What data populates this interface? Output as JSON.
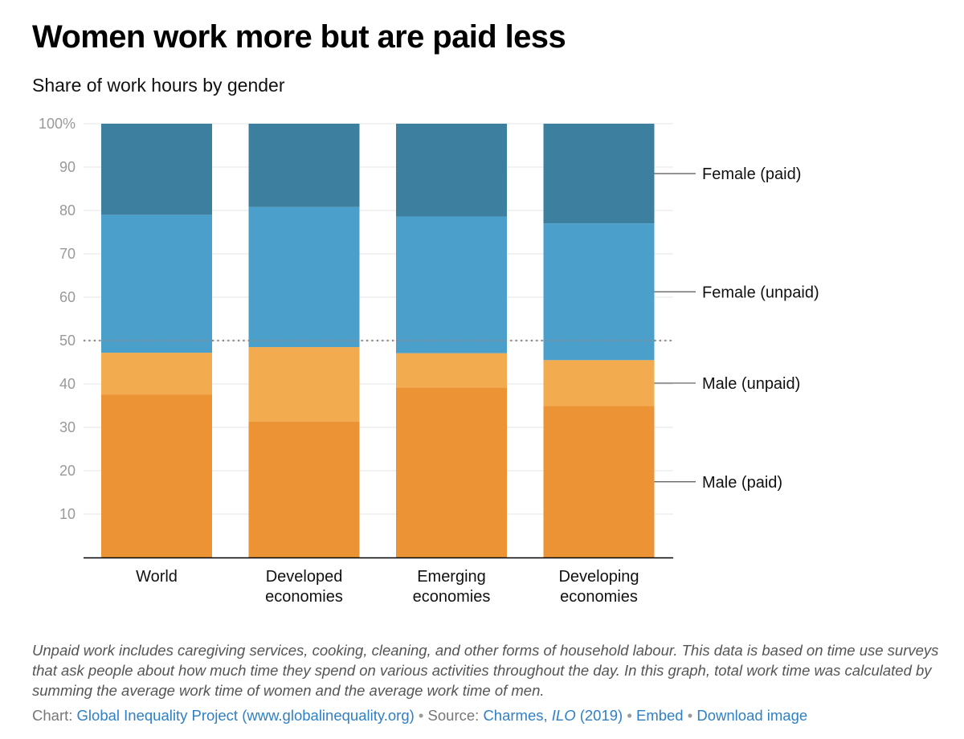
{
  "header": {
    "title": "Women work more but are paid less",
    "subtitle": "Share of work hours by gender"
  },
  "chart_data": {
    "type": "bar",
    "stacked": true,
    "categories": [
      [
        "World"
      ],
      [
        "Developed",
        "economies"
      ],
      [
        "Emerging",
        "economies"
      ],
      [
        "Developing",
        "economies"
      ]
    ],
    "series": [
      {
        "name": "Male (paid)",
        "values": [
          37.5,
          31.3,
          39.2,
          34.9
        ],
        "color": "#ec9336"
      },
      {
        "name": "Male (unpaid)",
        "values": [
          9.7,
          17.2,
          7.9,
          10.6
        ],
        "color": "#f2ab4e"
      },
      {
        "name": "Female (unpaid)",
        "values": [
          31.8,
          32.3,
          31.5,
          31.5
        ],
        "color": "#4aa0cb"
      },
      {
        "name": "Female (paid)",
        "values": [
          21.0,
          19.2,
          21.4,
          23.0
        ],
        "color": "#3d7f9e"
      }
    ],
    "yticks": [
      "100%",
      "90",
      "80",
      "70",
      "60",
      "50",
      "40",
      "30",
      "20",
      "10"
    ],
    "ylim": [
      0,
      100
    ],
    "reference_line": 50,
    "grid": true,
    "legend": "right, inline labels"
  },
  "note": "Unpaid work includes caregiving services, cooking, cleaning, and other forms of household labour. This data is based on time use surveys that ask people about how much time they spend on various activities throughout the day. In this graph, total work time was calculated by summing the average work time of women and the average work time of men.",
  "footer": {
    "chart_prefix": "Chart: ",
    "chart_link": "Global Inequality Project (www.globalinequality.org)",
    "source_prefix": "Source: ",
    "source_author": "Charmes, ",
    "source_org": "ILO",
    "source_year": " (2019)",
    "embed": "Embed",
    "download": "Download image",
    "separator": "•"
  }
}
